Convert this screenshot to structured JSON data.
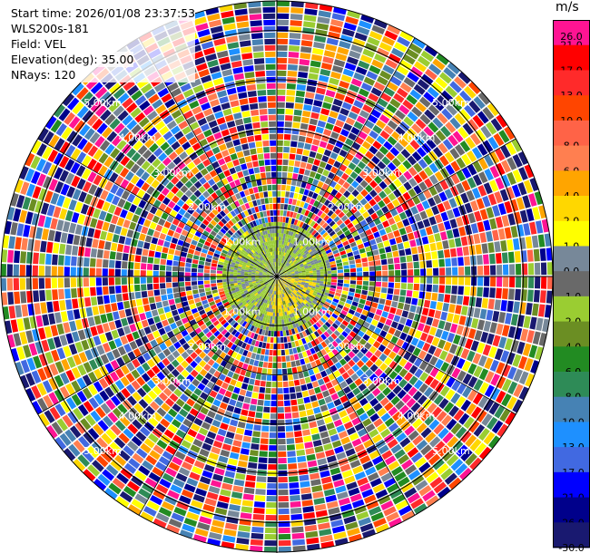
{
  "info": {
    "start_time": "Start time: 2026/01/08 23:37:53",
    "instrument": "WLS200s-181",
    "field": "Field: VEL",
    "elevation": "Elevation(deg): 35.00",
    "nrays": "NRays: 120"
  },
  "colorbar": {
    "unit": "m/s",
    "bins": [
      {
        "label": "26.0",
        "color": "#ff1493"
      },
      {
        "label": "21.0",
        "color": "#ff0000"
      },
      {
        "label": "17.0",
        "color": "#ff2a2a"
      },
      {
        "label": "13.0",
        "color": "#ff4500"
      },
      {
        "label": "10.0",
        "color": "#ff6347"
      },
      {
        "label": "8.0",
        "color": "#ff7f50"
      },
      {
        "label": "6.0",
        "color": "#ffa500"
      },
      {
        "label": "4.0",
        "color": "#ffd700"
      },
      {
        "label": "2.0",
        "color": "#ffff00"
      },
      {
        "label": "1.0",
        "color": "#778899"
      },
      {
        "label": "0.0",
        "color": "#696969"
      },
      {
        "label": "-1.0",
        "color": "#9acd32"
      },
      {
        "label": "-2.0",
        "color": "#6b8e23"
      },
      {
        "label": "-4.0",
        "color": "#228b22"
      },
      {
        "label": "-6.0",
        "color": "#2e8b57"
      },
      {
        "label": "-8.0",
        "color": "#4682b4"
      },
      {
        "label": "-10.0",
        "color": "#1e90ff"
      },
      {
        "label": "-13.0",
        "color": "#4169e1"
      },
      {
        "label": "-17.0",
        "color": "#0000ff"
      },
      {
        "label": "-21.0",
        "color": "#00008b"
      },
      {
        "label": "-26.0",
        "color": "#191970"
      }
    ],
    "bottom_label": "-30.0"
  },
  "chart_data": {
    "type": "heatmap",
    "projection": "polar",
    "field": "VEL",
    "units": "m/s",
    "nrays": 120,
    "elevation_deg": 35.0,
    "range_rings_km": [
      1,
      2,
      3,
      4,
      5
    ],
    "ring_labels": [
      "1.00km",
      "2.00km",
      "3.00km",
      "4.00km",
      "5.00km"
    ],
    "max_range_km": 5.6,
    "spokes": 12,
    "inner_region_km": 1.0,
    "inner_values_ms": [
      -1.0,
      -2.0,
      2.0,
      4.0,
      1.0
    ],
    "outer_values_ms": [
      -30,
      -26,
      -21,
      -17,
      -13,
      -10,
      -8,
      -6,
      -4,
      -2,
      -1,
      0,
      1,
      2,
      4,
      6,
      8,
      10,
      13,
      17,
      21,
      26
    ]
  }
}
